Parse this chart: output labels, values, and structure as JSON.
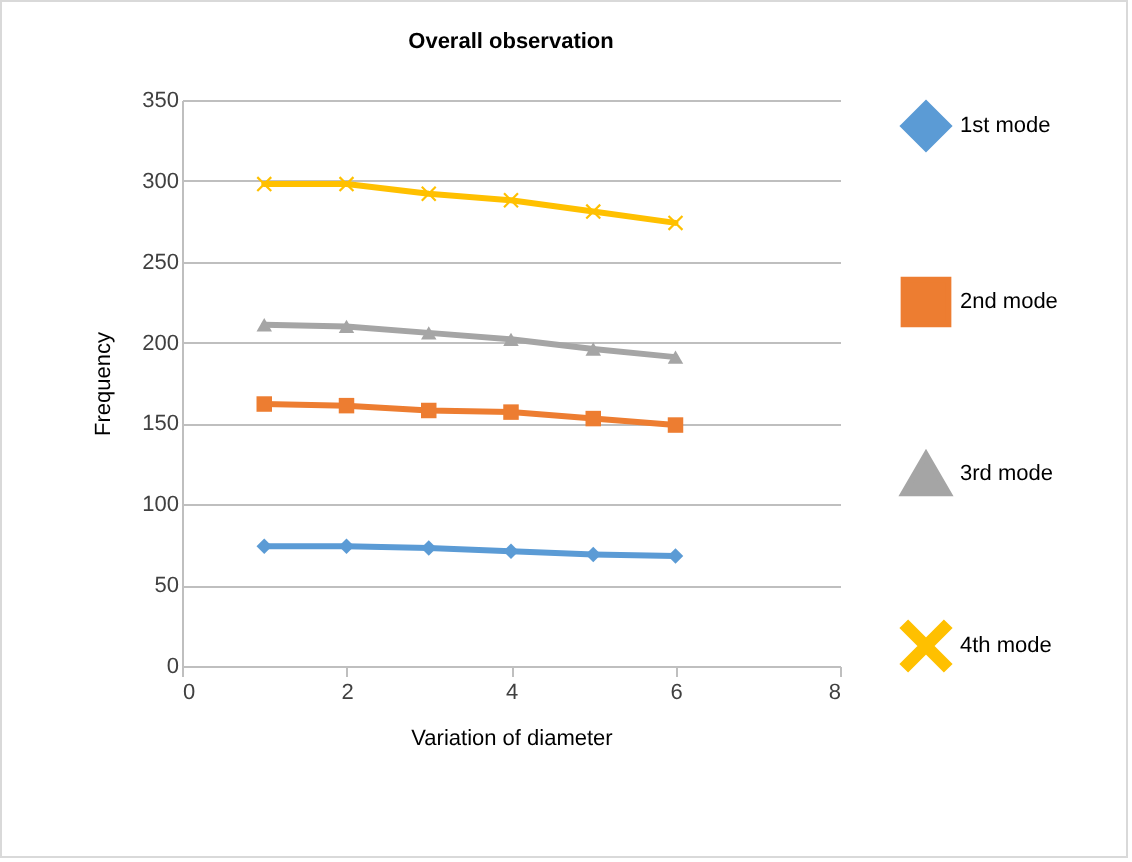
{
  "chart_data": {
    "type": "line",
    "title": "Overall observation",
    "xlabel": "Variation of diameter",
    "ylabel": "Frequency",
    "x": [
      1,
      2,
      3,
      4,
      5,
      6
    ],
    "series": [
      {
        "name": "1st mode",
        "color": "#5b9bd5",
        "marker": "diamond",
        "values": [
          74,
          74,
          73,
          71,
          69,
          68
        ]
      },
      {
        "name": "2nd mode",
        "color": "#ed7d31",
        "marker": "square",
        "values": [
          162,
          161,
          158,
          157,
          153,
          149
        ]
      },
      {
        "name": "3rd mode",
        "color": "#a5a5a5",
        "marker": "triangle",
        "values": [
          211,
          210,
          206,
          202,
          196,
          191
        ]
      },
      {
        "name": "4th mode",
        "color": "#ffc000",
        "marker": "cross",
        "values": [
          298,
          298,
          292,
          288,
          281,
          274
        ]
      }
    ],
    "xlim": [
      0,
      8
    ],
    "xticks": [
      0,
      2,
      4,
      6,
      8
    ],
    "ylim": [
      0,
      350
    ],
    "yticks": [
      0,
      50,
      100,
      150,
      200,
      250,
      300,
      350
    ],
    "grid": "y",
    "legend": "right"
  }
}
